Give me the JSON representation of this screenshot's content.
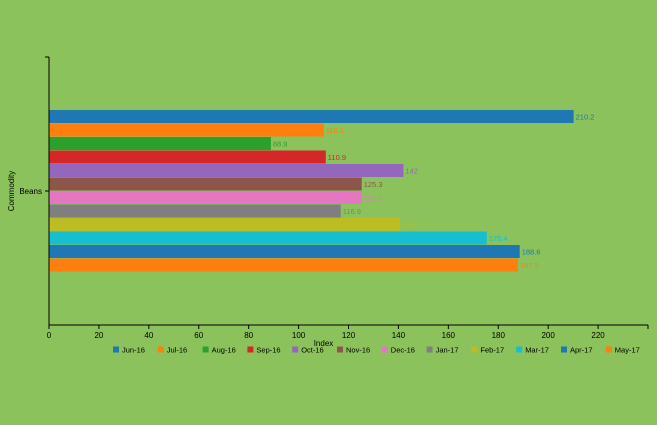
{
  "chart_data": {
    "type": "bar",
    "orientation": "horizontal",
    "categories": [
      "Beans"
    ],
    "xlabel": "Index",
    "ylabel": "Commodity",
    "xlim": [
      0,
      240
    ],
    "xticks": [
      0,
      20,
      40,
      60,
      80,
      100,
      120,
      140,
      160,
      180,
      200,
      220
    ],
    "grid": false,
    "legend_position": "bottom",
    "series": [
      {
        "name": "Jun-16",
        "color": "#1f77b4",
        "values": [
          210.2
        ],
        "label": "210.2"
      },
      {
        "name": "Jul-16",
        "color": "#ff7f0e",
        "values": [
          110.1
        ],
        "label": "110.1"
      },
      {
        "name": "Aug-16",
        "color": "#2ca02c",
        "values": [
          88.9
        ],
        "label": "88.9"
      },
      {
        "name": "Sep-16",
        "color": "#d62728",
        "values": [
          110.9
        ],
        "label": "110.9"
      },
      {
        "name": "Oct-16",
        "color": "#9467bd",
        "values": [
          142
        ],
        "label": "142"
      },
      {
        "name": "Nov-16",
        "color": "#8c564b",
        "values": [
          125.3
        ],
        "label": "125.3"
      },
      {
        "name": "Dec-16",
        "color": "#e377c2",
        "values": [
          125.3
        ],
        "label": "125.3"
      },
      {
        "name": "Jan-17",
        "color": "#7f7f7f",
        "values": [
          116.9
        ],
        "label": "116.9"
      },
      {
        "name": "Feb-17",
        "color": "#bcbd22",
        "values": [
          140.7
        ],
        "label": "140.7"
      },
      {
        "name": "Mar-17",
        "color": "#17becf",
        "values": [
          175.4
        ],
        "label": "175.4"
      },
      {
        "name": "Apr-17",
        "color": "#1f77b4",
        "values": [
          188.6
        ],
        "label": "188.6"
      },
      {
        "name": "May-17",
        "color": "#ff7f0e",
        "values": [
          187.9
        ],
        "label": "187.9"
      }
    ]
  }
}
